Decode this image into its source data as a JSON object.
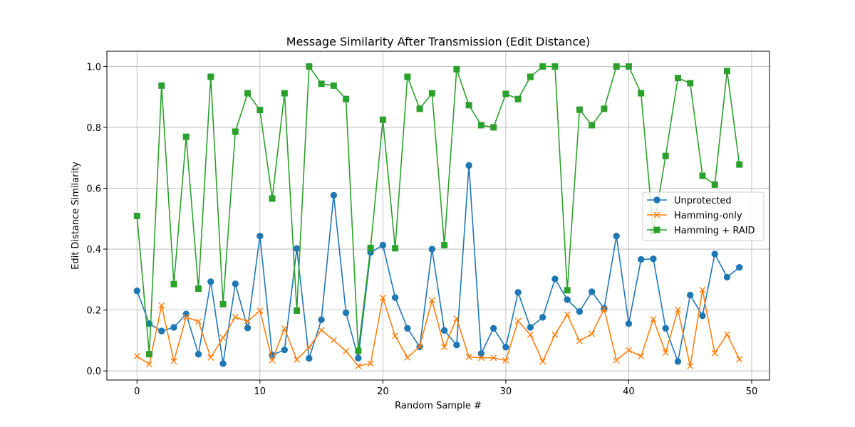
{
  "chart_data": {
    "type": "line",
    "title": "Message Similarity After Transmission (Edit Distance)",
    "xlabel": "Random Sample #",
    "ylabel": "Edit Distance Similarity",
    "xlim": [
      -2.45,
      51.45
    ],
    "ylim": [
      -0.03,
      1.05
    ],
    "xticks": [
      0,
      10,
      20,
      30,
      40,
      50
    ],
    "yticks": [
      0.0,
      0.2,
      0.4,
      0.6,
      0.8,
      1.0
    ],
    "xtick_labels": [
      "0",
      "10",
      "20",
      "30",
      "40",
      "50"
    ],
    "ytick_labels": [
      "0.0",
      "0.2",
      "0.4",
      "0.6",
      "0.8",
      "1.0"
    ],
    "grid": true,
    "legend_position": "center-right",
    "x": [
      0,
      1,
      2,
      3,
      4,
      5,
      6,
      7,
      8,
      9,
      10,
      11,
      12,
      13,
      14,
      15,
      16,
      17,
      18,
      19,
      20,
      21,
      22,
      23,
      24,
      25,
      26,
      27,
      28,
      29,
      30,
      31,
      32,
      33,
      34,
      35,
      36,
      37,
      38,
      39,
      40,
      41,
      42,
      43,
      44,
      45,
      46,
      47,
      48,
      49
    ],
    "series": [
      {
        "name": "Unprotected",
        "color": "#1f77b4",
        "marker": "circle",
        "values": [
          0.263,
          0.155,
          0.131,
          0.143,
          0.187,
          0.055,
          0.293,
          0.024,
          0.286,
          0.141,
          0.443,
          0.052,
          0.069,
          0.402,
          0.041,
          0.168,
          0.577,
          0.191,
          0.042,
          0.389,
          0.413,
          0.241,
          0.14,
          0.079,
          0.4,
          0.133,
          0.085,
          0.675,
          0.057,
          0.14,
          0.078,
          0.258,
          0.143,
          0.176,
          0.302,
          0.234,
          0.195,
          0.26,
          0.205,
          0.443,
          0.155,
          0.366,
          0.368,
          0.14,
          0.031,
          0.249,
          0.181,
          0.384,
          0.308,
          0.34
        ]
      },
      {
        "name": "Hamming-only",
        "color": "#ff7f0e",
        "marker": "x",
        "values": [
          0.048,
          0.022,
          0.215,
          0.032,
          0.177,
          0.162,
          0.044,
          0.109,
          0.177,
          0.163,
          0.198,
          0.035,
          0.139,
          0.037,
          0.077,
          0.134,
          0.101,
          0.065,
          0.016,
          0.024,
          0.24,
          0.115,
          0.044,
          0.08,
          0.232,
          0.078,
          0.172,
          0.046,
          0.043,
          0.043,
          0.034,
          0.164,
          0.119,
          0.031,
          0.119,
          0.185,
          0.098,
          0.122,
          0.204,
          0.035,
          0.068,
          0.048,
          0.17,
          0.06,
          0.201,
          0.016,
          0.266,
          0.058,
          0.12,
          0.038
        ]
      },
      {
        "name": "Hamming + RAID",
        "color": "#2ca02c",
        "marker": "square",
        "values": [
          0.509,
          0.055,
          0.937,
          0.285,
          0.769,
          0.27,
          0.966,
          0.219,
          0.786,
          0.912,
          0.857,
          0.566,
          0.912,
          0.198,
          1.0,
          0.943,
          0.937,
          0.893,
          0.066,
          0.404,
          0.825,
          0.403,
          0.966,
          0.861,
          0.912,
          0.413,
          0.991,
          0.873,
          0.807,
          0.8,
          0.91,
          0.893,
          0.966,
          1.0,
          1.0,
          0.265,
          0.858,
          0.807,
          0.861,
          1.0,
          1.0,
          0.912,
          0.46,
          0.706,
          0.962,
          0.945,
          0.641,
          0.612,
          0.985,
          0.678
        ]
      }
    ]
  }
}
